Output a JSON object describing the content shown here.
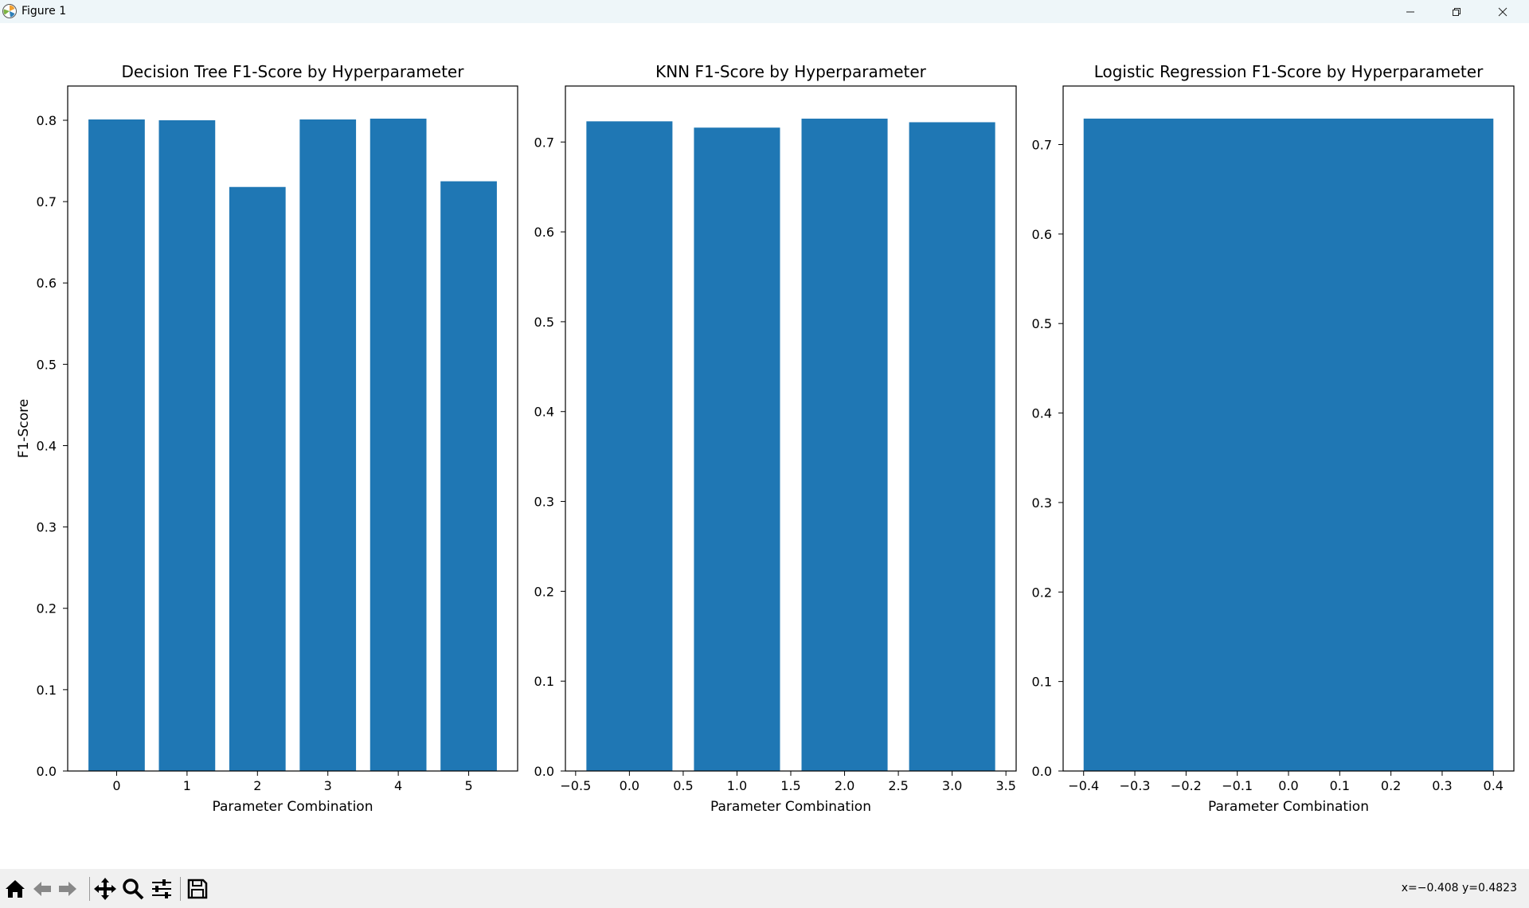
{
  "window": {
    "title": "Figure 1",
    "app_icon": "matplotlib-icon",
    "controls": [
      "minimize-icon",
      "restore-icon",
      "close-icon"
    ]
  },
  "toolbar": {
    "tools": [
      "home-icon",
      "back-arrow-icon",
      "forward-arrow-icon",
      "pan-move-icon",
      "zoom-magnifier-icon",
      "configure-subplots-icon",
      "save-floppy-icon"
    ],
    "coords": "x=−0.408 y=0.4823"
  },
  "bar_color": "#1f77b4",
  "chart_data": [
    {
      "type": "bar",
      "title": "Decision Tree F1-Score by Hyperparameter",
      "xlabel": "Parameter Combination",
      "ylabel": "F1-Score",
      "x": [
        0,
        1,
        2,
        3,
        4,
        5
      ],
      "values": [
        0.801,
        0.8,
        0.718,
        0.801,
        0.802,
        0.725
      ],
      "bar_width": 0.8,
      "xlim": [
        -0.695,
        5.695
      ],
      "ylim": [
        0,
        0.8421
      ],
      "xticks": [
        0,
        1,
        2,
        3,
        4,
        5
      ],
      "xtick_labels": [
        "0",
        "1",
        "2",
        "3",
        "4",
        "5"
      ],
      "yticks": [
        0,
        0.1,
        0.2,
        0.3,
        0.4,
        0.5,
        0.6,
        0.7,
        0.8
      ],
      "ytick_labels": [
        "0.0",
        "0.1",
        "0.2",
        "0.3",
        "0.4",
        "0.5",
        "0.6",
        "0.7",
        "0.8"
      ],
      "grid": false,
      "legend": null
    },
    {
      "type": "bar",
      "title": "KNN F1-Score by Hyperparameter",
      "xlabel": "Parameter Combination",
      "ylabel": "",
      "x": [
        0,
        1,
        2,
        3
      ],
      "values": [
        0.723,
        0.716,
        0.726,
        0.722
      ],
      "bar_width": 0.8,
      "xlim": [
        -0.595,
        3.595
      ],
      "ylim": [
        0,
        0.7623
      ],
      "xticks": [
        -0.5,
        0,
        0.5,
        1,
        1.5,
        2,
        2.5,
        3,
        3.5
      ],
      "xtick_labels": [
        "−0.5",
        "0.0",
        "0.5",
        "1.0",
        "1.5",
        "2.0",
        "2.5",
        "3.0",
        "3.5"
      ],
      "yticks": [
        0,
        0.1,
        0.2,
        0.3,
        0.4,
        0.5,
        0.6,
        0.7
      ],
      "ytick_labels": [
        "0.0",
        "0.1",
        "0.2",
        "0.3",
        "0.4",
        "0.5",
        "0.6",
        "0.7"
      ],
      "grid": false,
      "legend": null
    },
    {
      "type": "bar",
      "title": "Logistic Regression F1-Score by Hyperparameter",
      "xlabel": "Parameter Combination",
      "ylabel": "",
      "x": [
        0
      ],
      "values": [
        0.729
      ],
      "bar_width": 0.8,
      "xlim": [
        -0.44,
        0.44
      ],
      "ylim": [
        0,
        0.7654
      ],
      "xticks": [
        -0.4,
        -0.3,
        -0.2,
        -0.1,
        0,
        0.1,
        0.2,
        0.3,
        0.4
      ],
      "xtick_labels": [
        "−0.4",
        "−0.3",
        "−0.2",
        "−0.1",
        "0.0",
        "0.1",
        "0.2",
        "0.3",
        "0.4"
      ],
      "yticks": [
        0,
        0.1,
        0.2,
        0.3,
        0.4,
        0.5,
        0.6,
        0.7
      ],
      "ytick_labels": [
        "0.0",
        "0.1",
        "0.2",
        "0.3",
        "0.4",
        "0.5",
        "0.6",
        "0.7"
      ],
      "grid": false,
      "legend": null
    }
  ]
}
